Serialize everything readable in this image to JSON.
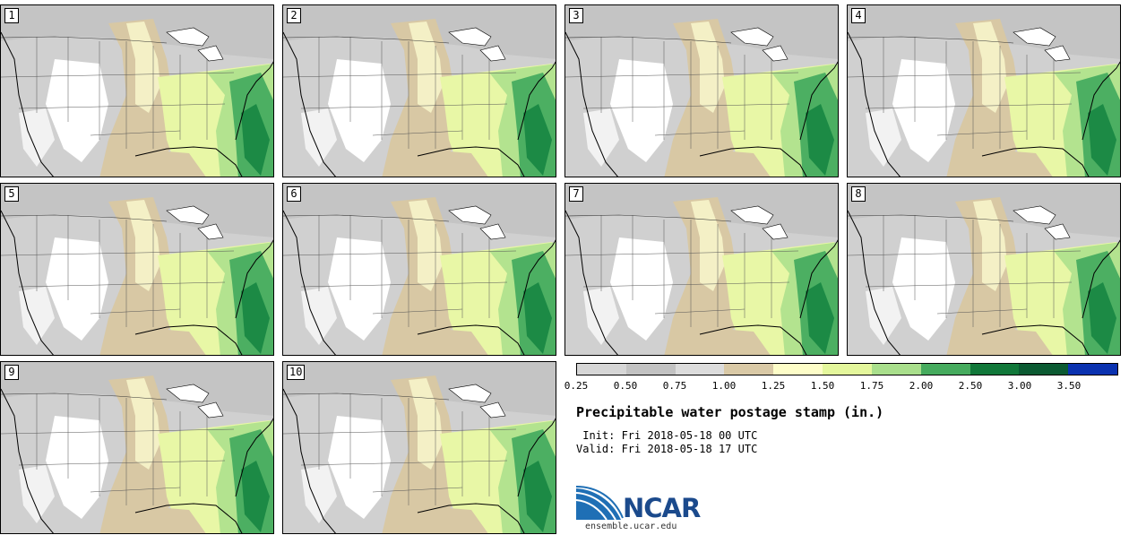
{
  "panels": [
    {
      "label": "1"
    },
    {
      "label": "2"
    },
    {
      "label": "3"
    },
    {
      "label": "4"
    },
    {
      "label": "5"
    },
    {
      "label": "6"
    },
    {
      "label": "7"
    },
    {
      "label": "8"
    },
    {
      "label": "9"
    },
    {
      "label": "10"
    }
  ],
  "colorbar": {
    "colors": [
      "#d6d6d6",
      "#c2c2c2",
      "#dcdcdc",
      "#d9c9a6",
      "#fdfdc8",
      "#e4f79c",
      "#a9df8c",
      "#46ab5e",
      "#11783a",
      "#0b5a32",
      "#0a32b0"
    ],
    "ticks": [
      "0.25",
      "0.50",
      "0.75",
      "1.00",
      "1.25",
      "1.50",
      "1.75",
      "2.00",
      "2.50",
      "3.00",
      "3.50"
    ]
  },
  "title": "Precipitable water postage stamp (in.)",
  "init": "Init: Fri 2018-05-18 00 UTC",
  "valid": "Valid: Fri 2018-05-18 17 UTC",
  "logo": {
    "text": "NCAR",
    "url": "ensemble.ucar.edu"
  }
}
